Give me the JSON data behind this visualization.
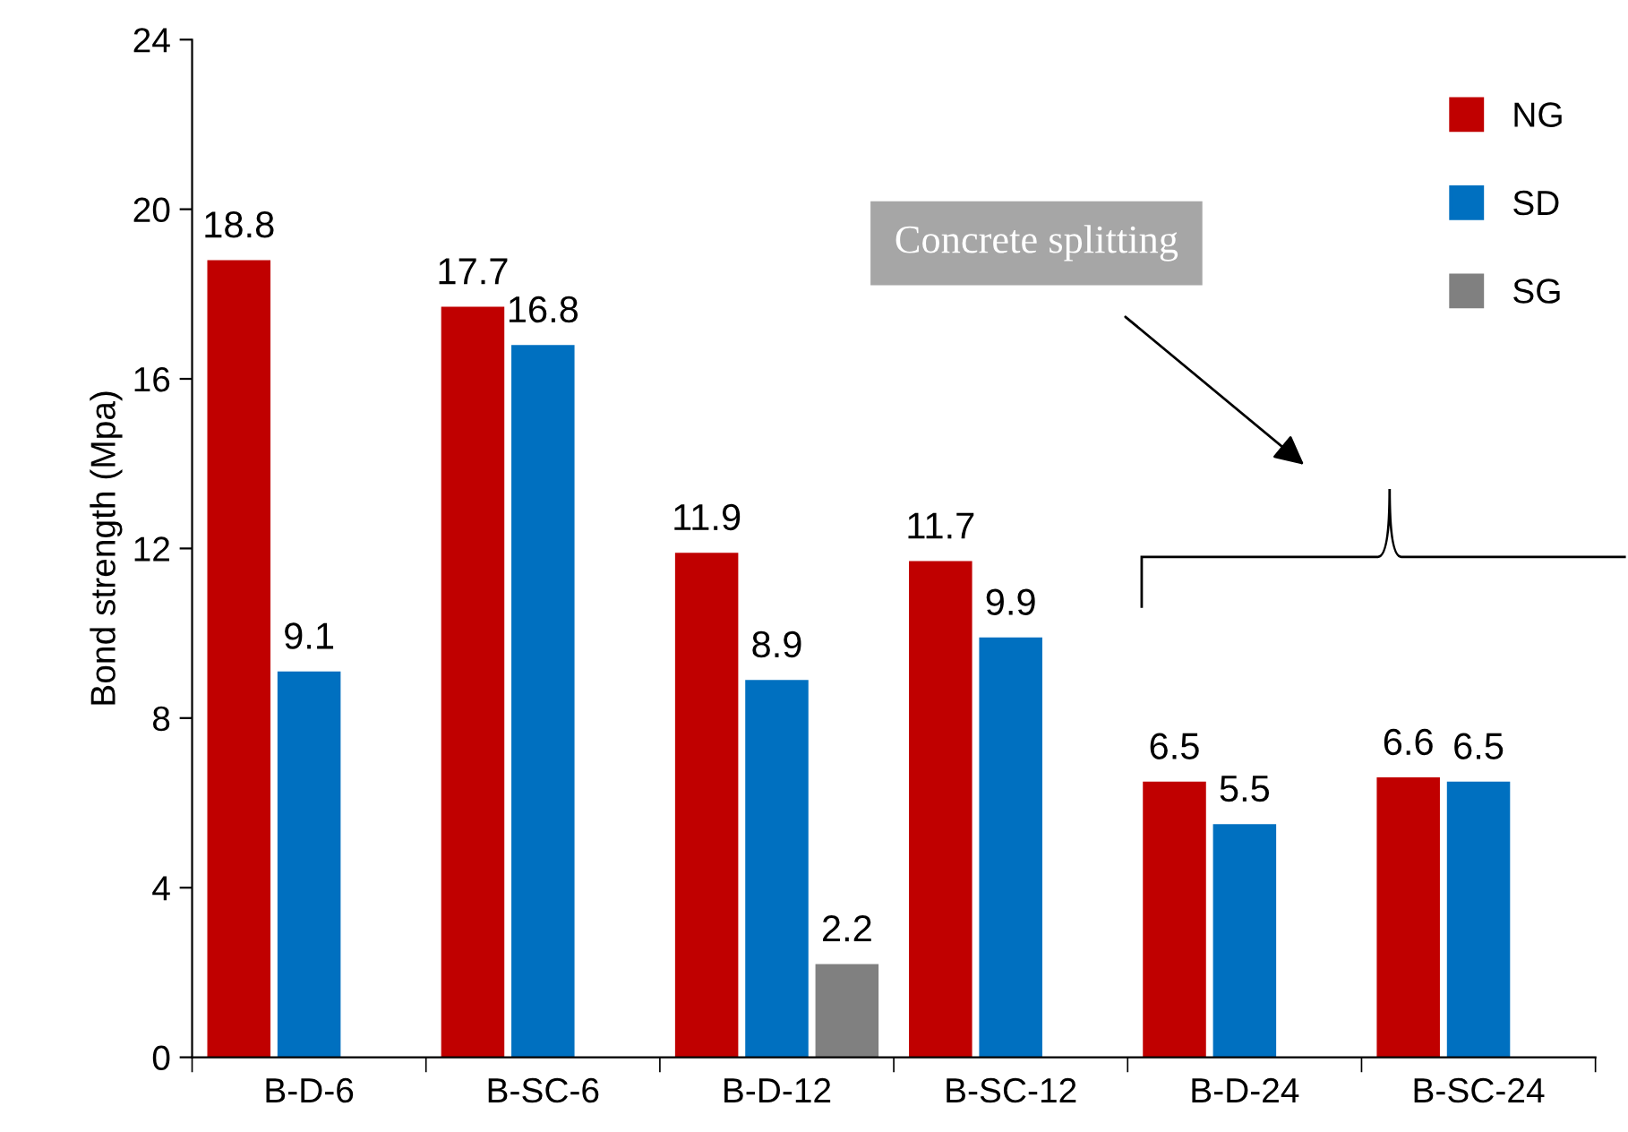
{
  "chart_data": {
    "type": "bar",
    "ylabel": "Bond strength (Mpa)",
    "categories": [
      "B-D-6",
      "B-SC-6",
      "B-D-12",
      "B-SC-12",
      "B-D-24",
      "B-SC-24"
    ],
    "series": [
      {
        "name": "NG",
        "color": "#c00000",
        "values": [
          18.8,
          17.7,
          11.9,
          11.7,
          6.5,
          6.6
        ]
      },
      {
        "name": "SD",
        "color": "#0070c0",
        "values": [
          9.1,
          16.8,
          8.9,
          9.9,
          5.5,
          6.5
        ]
      },
      {
        "name": "SG",
        "color": "#808080",
        "values": [
          null,
          null,
          2.2,
          null,
          null,
          null
        ]
      }
    ],
    "ylim": [
      0,
      24
    ],
    "yticks": [
      0,
      4,
      8,
      12,
      16,
      20,
      24
    ],
    "data_labels": true,
    "grid": false,
    "legend": "top right",
    "annotations": [
      "Concrete splitting"
    ]
  }
}
